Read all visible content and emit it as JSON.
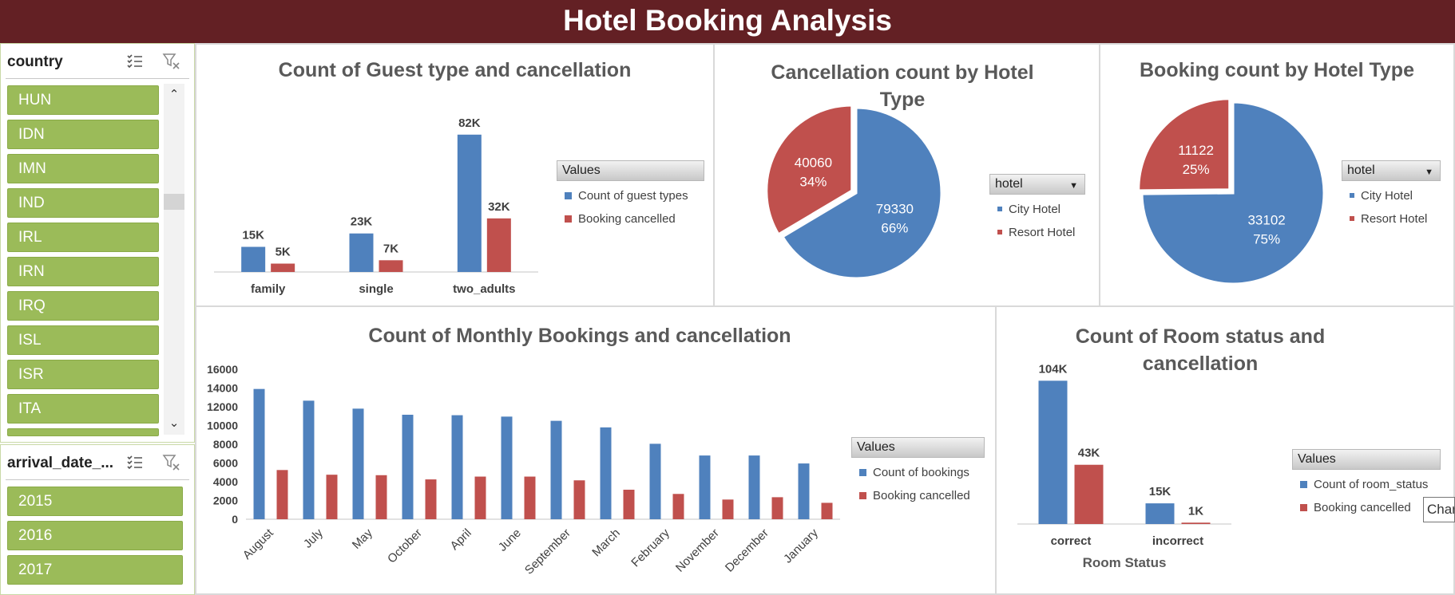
{
  "title": "Hotel Booking Analysis",
  "colors": {
    "blue": "#4f81bd",
    "red": "#c0504d",
    "slicer_item": "#9bbb59",
    "title_bar": "#632024"
  },
  "slicers": {
    "country": {
      "title": "country",
      "items": [
        "HUN",
        "IDN",
        "IMN",
        "IND",
        "IRL",
        "IRN",
        "IRQ",
        "ISL",
        "ISR",
        "ITA"
      ]
    },
    "arrival_year": {
      "title": "arrival_date_...",
      "items": [
        "2015",
        "2016",
        "2017"
      ]
    }
  },
  "icons": [
    "multi-select-icon",
    "clear-filter-icon",
    "scroll-up-icon",
    "scroll-down-icon",
    "dropdown-arrow-icon"
  ],
  "tooltip": {
    "text": "Char"
  },
  "chart_data": [
    {
      "id": "guest",
      "type": "bar",
      "title": "Count of Guest type and cancellation",
      "categories": [
        "family",
        "single",
        "two_adults"
      ],
      "series": [
        {
          "name": "Count of guest types",
          "values": [
            15000,
            23000,
            82000
          ],
          "labels": [
            "15K",
            "23K",
            "82K"
          ],
          "color": "#4f81bd"
        },
        {
          "name": "Booking cancelled",
          "values": [
            5000,
            7000,
            32000
          ],
          "labels": [
            "5K",
            "7K",
            "32K"
          ],
          "color": "#c0504d"
        }
      ],
      "ylim": [
        0,
        90000
      ],
      "legend_title": "Values",
      "legend_placement": "right"
    },
    {
      "id": "cancel_pie",
      "type": "pie",
      "title": "Cancellation count by Hotel Type",
      "slices": [
        {
          "name": "City Hotel",
          "value": 79330,
          "percent": "66%",
          "color": "#4f81bd"
        },
        {
          "name": "Resort Hotel",
          "value": 40060,
          "percent": "34%",
          "color": "#c0504d"
        }
      ],
      "legend_title": "hotel",
      "legend_placement": "right"
    },
    {
      "id": "booking_pie",
      "type": "pie",
      "title": "Booking count by Hotel Type",
      "slices": [
        {
          "name": "City Hotel",
          "value": 33102,
          "percent": "75%",
          "color": "#4f81bd"
        },
        {
          "name": "Resort Hotel",
          "value": 11122,
          "percent": "25%",
          "color": "#c0504d"
        }
      ],
      "legend_title": "hotel",
      "legend_placement": "right"
    },
    {
      "id": "monthly",
      "type": "bar",
      "title": "Count of Monthly Bookings and cancellation",
      "categories": [
        "August",
        "July",
        "May",
        "October",
        "April",
        "June",
        "September",
        "March",
        "February",
        "November",
        "December",
        "January"
      ],
      "series": [
        {
          "name": "Count of bookings",
          "values": [
            13900,
            12650,
            11800,
            11150,
            11100,
            10950,
            10500,
            9800,
            8050,
            6800,
            6800,
            5950
          ],
          "color": "#4f81bd"
        },
        {
          "name": "Booking cancelled",
          "values": [
            5250,
            4750,
            4700,
            4250,
            4550,
            4550,
            4150,
            3150,
            2700,
            2100,
            2350,
            1750
          ],
          "color": "#c0504d"
        }
      ],
      "yticks": [
        0,
        2000,
        4000,
        6000,
        8000,
        10000,
        12000,
        14000,
        16000
      ],
      "ylim": [
        0,
        16000
      ],
      "legend_title": "Values",
      "legend_placement": "right"
    },
    {
      "id": "room",
      "type": "bar",
      "title": "Count of Room status and cancellation",
      "categories": [
        "correct",
        "incorrect"
      ],
      "xlabel": "Room Status",
      "series": [
        {
          "name": "Count of room_status",
          "values": [
            104000,
            15000
          ],
          "labels": [
            "104K",
            "15K"
          ],
          "color": "#4f81bd"
        },
        {
          "name": "Booking cancelled",
          "values": [
            43000,
            1000
          ],
          "labels": [
            "43K",
            "1K"
          ],
          "color": "#c0504d"
        }
      ],
      "ylim": [
        0,
        110000
      ],
      "legend_title": "Values",
      "legend_placement": "right"
    }
  ]
}
